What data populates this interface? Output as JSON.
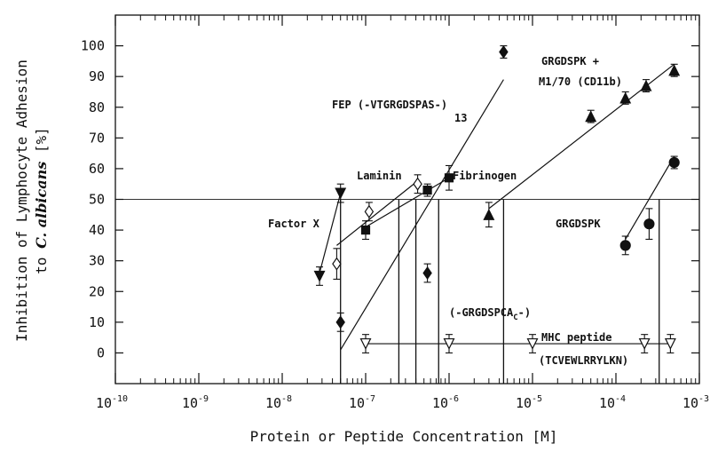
{
  "chart_data": {
    "type": "scatter",
    "x_scale": "log",
    "xlim": [
      1e-10,
      0.001
    ],
    "ylim": [
      -10,
      110
    ],
    "grid": false,
    "xlabel": "Protein or Peptide Concentration [M]",
    "ylabel_line1": "Inhibition of Lymphocyte Adhesion",
    "ylabel_line2_pre": "to ",
    "ylabel_line2_italic": "C. albicans",
    "ylabel_line2_post": " [%]",
    "x_ticks": [
      {
        "base": "10",
        "exp": "-10"
      },
      {
        "base": "10",
        "exp": "-9"
      },
      {
        "base": "10",
        "exp": "-8"
      },
      {
        "base": "10",
        "exp": "-7"
      },
      {
        "base": "10",
        "exp": "-6"
      },
      {
        "base": "10",
        "exp": "-5"
      },
      {
        "base": "10",
        "exp": "-4"
      },
      {
        "base": "10",
        "exp": "-3"
      }
    ],
    "y_ticks": [
      "0",
      "10",
      "20",
      "30",
      "40",
      "50",
      "60",
      "70",
      "80",
      "90",
      "100"
    ],
    "reference_line_y": 50,
    "annotations": {
      "factor_x": "Factor X",
      "laminin": "Laminin",
      "fibrinogen": "Fibrinogen",
      "fep": "FEP (-VTGRGDSPAS-)",
      "fep_sub": "13",
      "grgdspk_m1_line1": "GRGDSPK +",
      "grgdspk_m1_line2": "M1/70 (CD11b)",
      "grgdspk": "GRGDSPK",
      "grgdspca": "(-GRGDSPCA",
      "grgdspca_sub": "C",
      "grgdspca_end": "-)",
      "mhc_line1": "MHC peptide",
      "mhc_line2": "(TCVEWLRRYLKN)"
    },
    "series": [
      {
        "name": "Factor X",
        "marker": "triangle-down-filled",
        "points": [
          {
            "x": 2.8e-08,
            "y": 25,
            "err": 3
          },
          {
            "x": 5e-08,
            "y": 52,
            "err": 3
          }
        ],
        "fit": [
          [
            2.8e-08,
            26
          ],
          [
            5e-08,
            52
          ]
        ],
        "ic50": 5e-08
      },
      {
        "name": "Laminin",
        "marker": "diamond-open",
        "points": [
          {
            "x": 4.5e-08,
            "y": 29,
            "err": 5
          },
          {
            "x": 1.1e-07,
            "y": 46,
            "err": 3
          },
          {
            "x": 4.2e-07,
            "y": 55,
            "err": 3
          }
        ],
        "fit": [
          [
            4.5e-08,
            35
          ],
          [
            4.2e-07,
            56
          ]
        ],
        "ic50": 2.5e-07
      },
      {
        "name": "Fibrinogen",
        "marker": "square-filled",
        "points": [
          {
            "x": 1e-07,
            "y": 40,
            "err": 3
          },
          {
            "x": 5.5e-07,
            "y": 53,
            "err": 2
          },
          {
            "x": 1e-06,
            "y": 57,
            "err": 4
          }
        ],
        "fit": [
          [
            1e-07,
            41
          ],
          [
            1e-06,
            57
          ]
        ],
        "ic50": 4e-07
      },
      {
        "name": "FEP (-VTGRGDSPAS-)13",
        "marker": "diamond-filled",
        "points": [
          {
            "x": 5e-08,
            "y": 10,
            "err": 3
          },
          {
            "x": 5.5e-07,
            "y": 26,
            "err": 3
          },
          {
            "x": 4.5e-06,
            "y": 98,
            "err": 2
          }
        ],
        "fit": [
          [
            5e-08,
            1
          ],
          [
            4.5e-06,
            89
          ]
        ],
        "ic50": 7.5e-07
      },
      {
        "name": "GRGDSPK + M1/70 (CD11b)",
        "marker": "triangle-up-filled",
        "points": [
          {
            "x": 3e-06,
            "y": 45,
            "err": 4
          },
          {
            "x": 5e-05,
            "y": 77,
            "err": 2
          },
          {
            "x": 0.00013,
            "y": 83,
            "err": 2
          },
          {
            "x": 0.00023,
            "y": 87,
            "err": 2
          },
          {
            "x": 0.0005,
            "y": 92,
            "err": 2
          }
        ],
        "fit": [
          [
            3e-06,
            47
          ],
          [
            0.0005,
            94
          ]
        ],
        "ic50": 4.5e-06
      },
      {
        "name": "GRGDSPK",
        "marker": "circle-filled",
        "points": [
          {
            "x": 0.00013,
            "y": 35,
            "err": 3
          },
          {
            "x": 0.00025,
            "y": 42,
            "err": 5
          },
          {
            "x": 0.0005,
            "y": 62,
            "err": 2
          }
        ],
        "fit": [
          [
            0.00013,
            37
          ],
          [
            0.0005,
            64
          ]
        ],
        "ic50": 0.00033
      },
      {
        "name": "MHC peptide (TCVEWLRRYLKN)",
        "marker": "triangle-down-open",
        "points": [
          {
            "x": 1e-07,
            "y": 3,
            "err": 3
          },
          {
            "x": 1e-06,
            "y": 3,
            "err": 3
          },
          {
            "x": 1e-05,
            "y": 3,
            "err": 3
          },
          {
            "x": 0.00022,
            "y": 3,
            "err": 3
          },
          {
            "x": 0.00045,
            "y": 3,
            "err": 3
          }
        ],
        "fit": [
          [
            1e-07,
            3
          ],
          [
            0.00045,
            3
          ]
        ],
        "ic50": null
      }
    ]
  }
}
